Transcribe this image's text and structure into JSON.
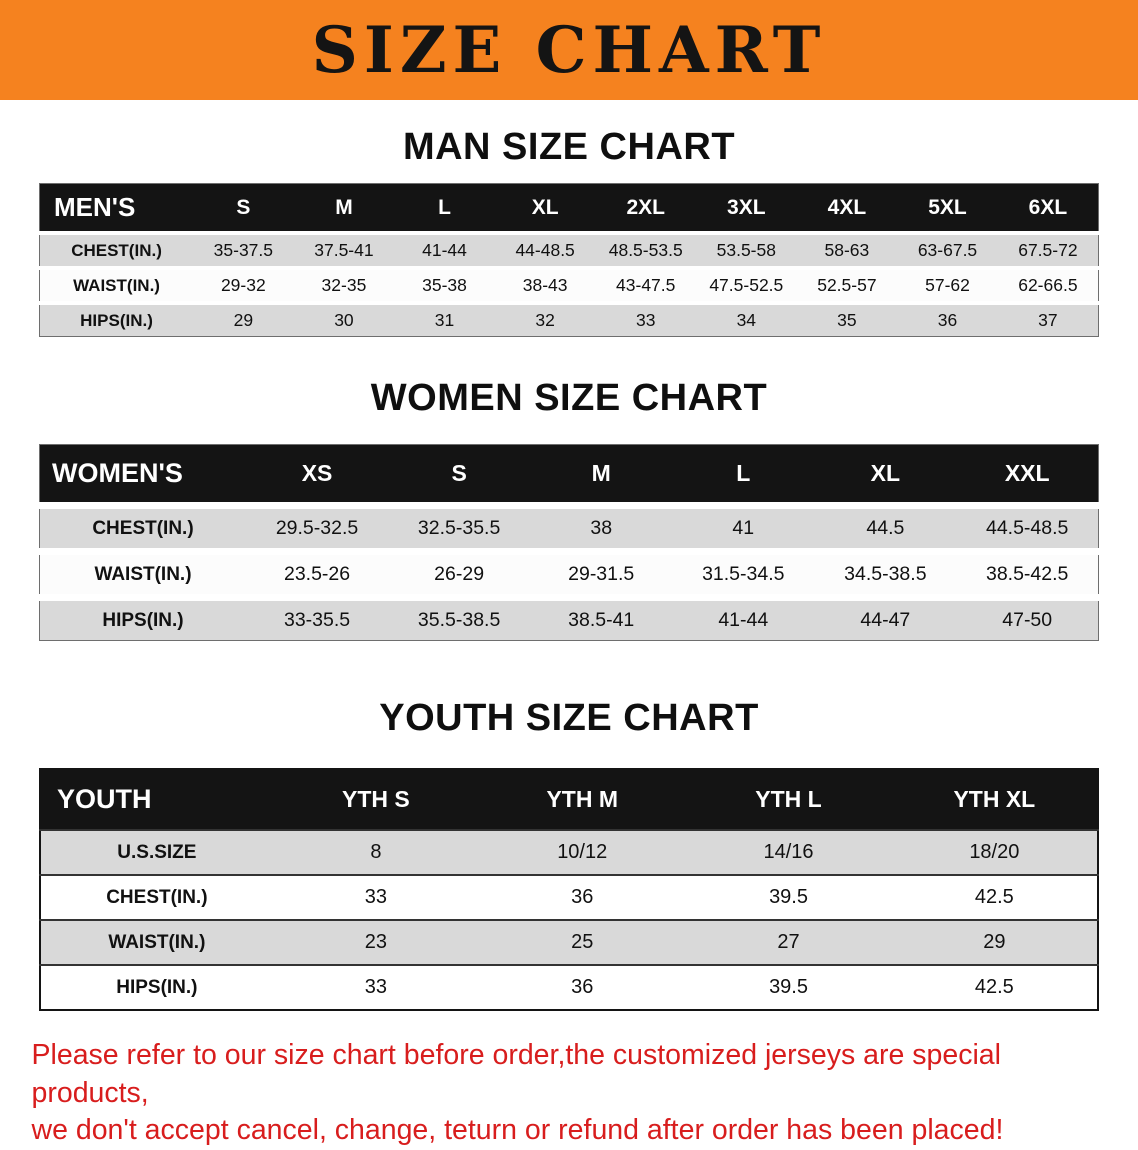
{
  "colors": {
    "banner_bg": "#f5821f",
    "table_header_bg": "#141414",
    "row_gray": "#d9d9d9",
    "disclaimer_red": "#d81d1d"
  },
  "banner": {
    "title": "SIZE CHART"
  },
  "sections": [
    {
      "id": "men",
      "heading": "MAN SIZE CHART",
      "table": {
        "title": "MEN'S",
        "size_headers": [
          "S",
          "M",
          "L",
          "XL",
          "2XL",
          "3XL",
          "4XL",
          "5XL",
          "6XL"
        ],
        "rows": [
          {
            "label": "CHEST(IN.)",
            "values": [
              "35-37.5",
              "37.5-41",
              "41-44",
              "44-48.5",
              "48.5-53.5",
              "53.5-58",
              "58-63",
              "63-67.5",
              "67.5-72"
            ]
          },
          {
            "label": "WAIST(IN.)",
            "values": [
              "29-32",
              "32-35",
              "35-38",
              "38-43",
              "43-47.5",
              "47.5-52.5",
              "52.5-57",
              "57-62",
              "62-66.5"
            ]
          },
          {
            "label": "HIPS(IN.)",
            "values": [
              "29",
              "30",
              "31",
              "32",
              "33",
              "34",
              "35",
              "36",
              "37"
            ]
          }
        ]
      }
    },
    {
      "id": "women",
      "heading": "WOMEN SIZE CHART",
      "table": {
        "title": "WOMEN'S",
        "size_headers": [
          "XS",
          "S",
          "M",
          "L",
          "XL",
          "XXL"
        ],
        "rows": [
          {
            "label": "CHEST(IN.)",
            "values": [
              "29.5-32.5",
              "32.5-35.5",
              "38",
              "41",
              "44.5",
              "44.5-48.5"
            ]
          },
          {
            "label": "WAIST(IN.)",
            "values": [
              "23.5-26",
              "26-29",
              "29-31.5",
              "31.5-34.5",
              "34.5-38.5",
              "38.5-42.5"
            ]
          },
          {
            "label": "HIPS(IN.)",
            "values": [
              "33-35.5",
              "35.5-38.5",
              "38.5-41",
              "41-44",
              "44-47",
              "47-50"
            ]
          }
        ]
      }
    },
    {
      "id": "youth",
      "heading": "YOUTH SIZE CHART",
      "table": {
        "title": "YOUTH",
        "size_headers": [
          "YTH S",
          "YTH M",
          "YTH L",
          "YTH XL"
        ],
        "rows": [
          {
            "label": "U.S.SIZE",
            "values": [
              "8",
              "10/12",
              "14/16",
              "18/20"
            ]
          },
          {
            "label": "CHEST(IN.)",
            "values": [
              "33",
              "36",
              "39.5",
              "42.5"
            ]
          },
          {
            "label": "WAIST(IN.)",
            "values": [
              "23",
              "25",
              "27",
              "29"
            ]
          },
          {
            "label": "HIPS(IN.)",
            "values": [
              "33",
              "36",
              "39.5",
              "42.5"
            ]
          }
        ]
      }
    }
  ],
  "disclaimer": {
    "line1": "Please refer to our size chart before order,the customized jerseys are special products,",
    "line2": "we don't accept cancel, change, teturn or refund after order has been placed!"
  }
}
